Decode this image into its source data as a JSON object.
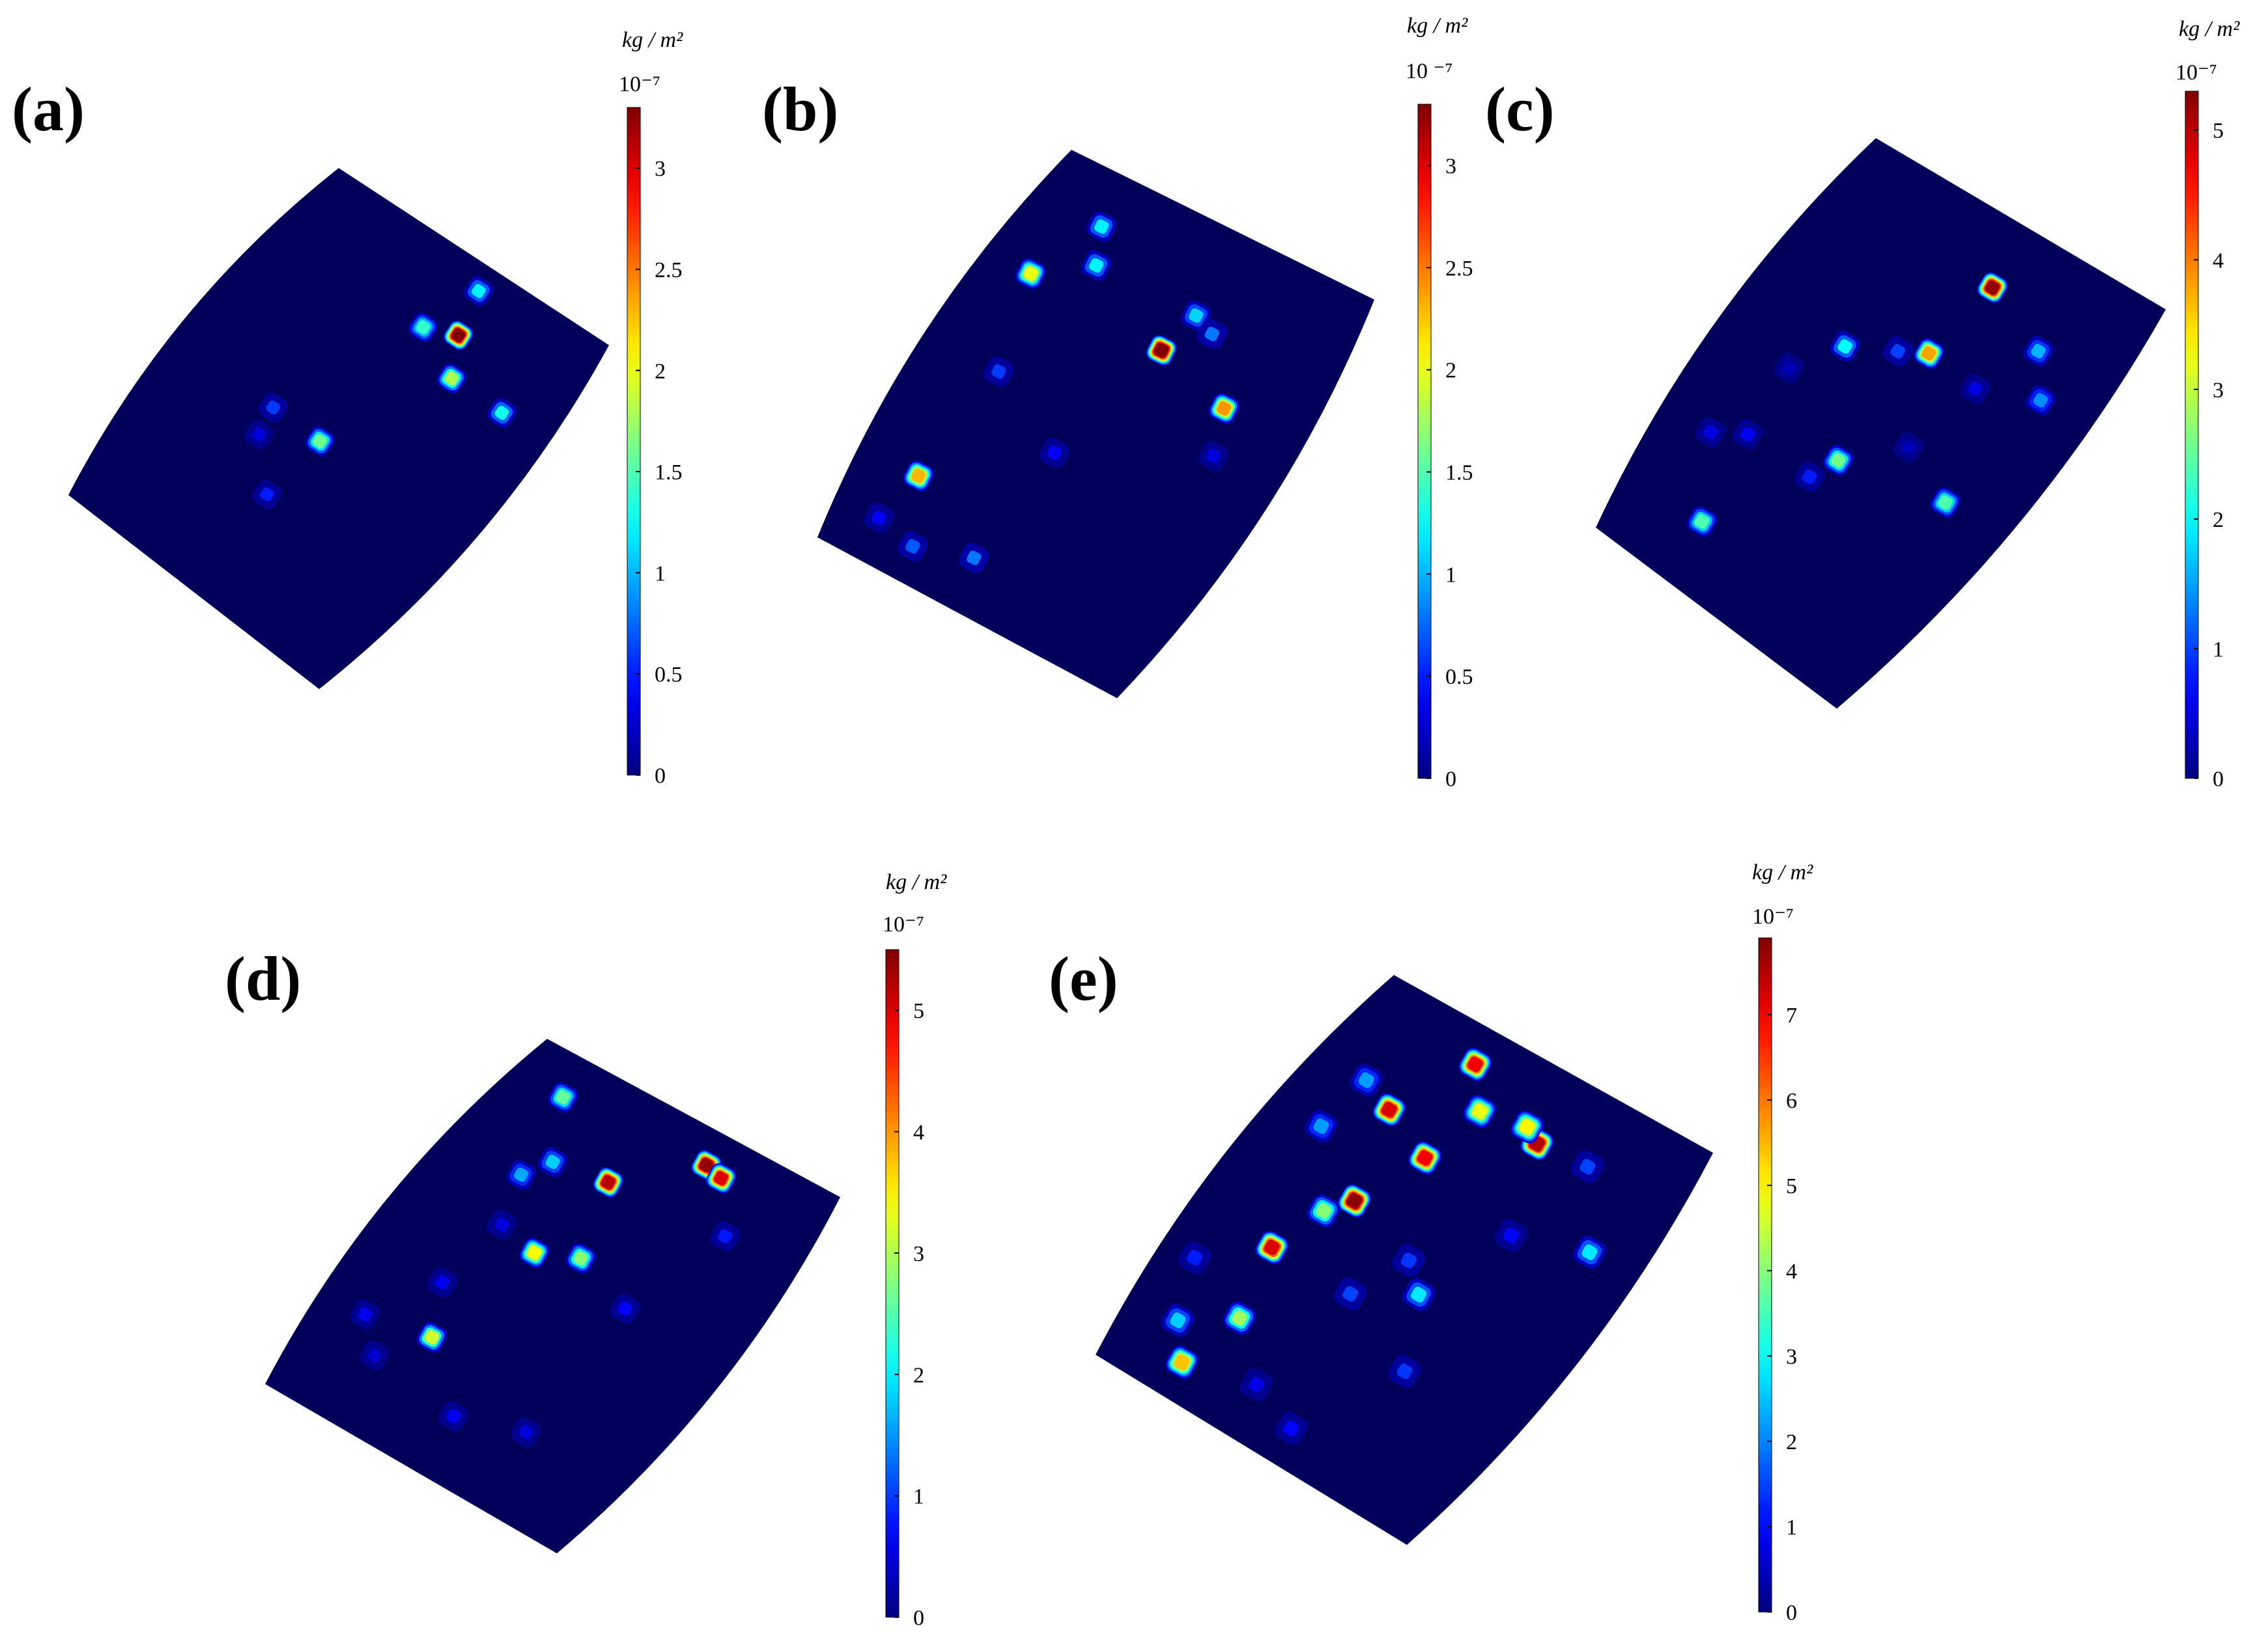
{
  "figure": {
    "colorbar_title": "kg / m²",
    "colorbar_exponent": "10⁻⁷",
    "colormap": "jet",
    "background_color": "#00005a"
  },
  "chart_data": [
    {
      "type": "heatmap",
      "label": "(a)",
      "colorbar": {
        "min": 0,
        "max": 3.3,
        "ticks": [
          0,
          0.5,
          1,
          1.5,
          2,
          2.5,
          3
        ]
      },
      "spots": [
        {
          "u": 0.62,
          "v": 0.17,
          "value": 3.3
        },
        {
          "u": 0.58,
          "v": 0.06,
          "value": 1.2
        },
        {
          "u": 0.52,
          "v": 0.2,
          "value": 1.4
        },
        {
          "u": 0.69,
          "v": 0.26,
          "value": 1.8
        },
        {
          "u": 0.88,
          "v": 0.26,
          "value": 1.3
        },
        {
          "u": 0.5,
          "v": 0.55,
          "value": 1.6
        },
        {
          "u": 0.32,
          "v": 0.55,
          "value": 0.6
        },
        {
          "u": 0.48,
          "v": 0.72,
          "value": 0.5
        },
        {
          "u": 0.34,
          "v": 0.62,
          "value": 0.3
        }
      ]
    },
    {
      "type": "heatmap",
      "label": "(b)",
      "colorbar": {
        "min": 0,
        "max": 3.3,
        "ticks": [
          0,
          0.5,
          1,
          1.5,
          2,
          2.5,
          3
        ],
        "exponent_text": "10 ⁻⁷"
      },
      "spots": [
        {
          "u": 0.2,
          "v": 0.12,
          "value": 1.2
        },
        {
          "u": 0.25,
          "v": 0.2,
          "value": 1.2
        },
        {
          "u": 0.1,
          "v": 0.28,
          "value": 2.0
        },
        {
          "u": 0.55,
          "v": 0.3,
          "value": 3.4
        },
        {
          "u": 0.58,
          "v": 0.2,
          "value": 1.1
        },
        {
          "u": 0.65,
          "v": 0.22,
          "value": 0.8
        },
        {
          "u": 0.8,
          "v": 0.35,
          "value": 2.4
        },
        {
          "u": 0.18,
          "v": 0.5,
          "value": 0.6
        },
        {
          "u": 0.45,
          "v": 0.6,
          "value": 0.4
        },
        {
          "u": 0.85,
          "v": 0.45,
          "value": 0.3
        },
        {
          "u": 0.15,
          "v": 0.78,
          "value": 2.3
        },
        {
          "u": 0.12,
          "v": 0.9,
          "value": 0.4
        },
        {
          "u": 0.25,
          "v": 0.92,
          "value": 0.7
        },
        {
          "u": 0.42,
          "v": 0.88,
          "value": 0.8
        }
      ]
    },
    {
      "type": "heatmap",
      "label": "(c)",
      "colorbar": {
        "min": 0,
        "max": 5.3,
        "ticks": [
          0,
          1,
          2,
          3,
          4,
          5
        ]
      },
      "spots": [
        {
          "u": 0.55,
          "v": 0.14,
          "value": 5.2
        },
        {
          "u": 0.78,
          "v": 0.2,
          "value": 1.6
        },
        {
          "u": 0.88,
          "v": 0.28,
          "value": 1.4
        },
        {
          "u": 0.52,
          "v": 0.32,
          "value": 3.8
        },
        {
          "u": 0.44,
          "v": 0.35,
          "value": 1.0
        },
        {
          "u": 0.3,
          "v": 0.4,
          "value": 2.0
        },
        {
          "u": 0.7,
          "v": 0.33,
          "value": 0.5
        },
        {
          "u": 0.85,
          "v": 0.55,
          "value": 2.4
        },
        {
          "u": 0.5,
          "v": 0.6,
          "value": 2.6
        },
        {
          "u": 0.46,
          "v": 0.66,
          "value": 0.8
        },
        {
          "u": 0.22,
          "v": 0.66,
          "value": 0.6
        },
        {
          "u": 0.12,
          "v": 0.7,
          "value": 0.5
        },
        {
          "u": 0.27,
          "v": 0.86,
          "value": 2.4
        },
        {
          "u": 0.2,
          "v": 0.5,
          "value": 0.3
        },
        {
          "u": 0.65,
          "v": 0.5,
          "value": 0.3
        }
      ]
    },
    {
      "type": "heatmap",
      "label": "(d)",
      "colorbar": {
        "min": 0,
        "max": 5.5,
        "ticks": [
          0,
          1,
          2,
          3,
          4,
          5
        ]
      },
      "spots": [
        {
          "u": 0.15,
          "v": 0.1,
          "value": 2.6
        },
        {
          "u": 0.62,
          "v": 0.08,
          "value": 5.4
        },
        {
          "u": 0.68,
          "v": 0.09,
          "value": 5.0
        },
        {
          "u": 0.42,
          "v": 0.22,
          "value": 5.2
        },
        {
          "u": 0.25,
          "v": 0.24,
          "value": 1.8
        },
        {
          "u": 0.2,
          "v": 0.3,
          "value": 1.6
        },
        {
          "u": 0.8,
          "v": 0.2,
          "value": 0.8
        },
        {
          "u": 0.5,
          "v": 0.4,
          "value": 2.8
        },
        {
          "u": 0.38,
          "v": 0.44,
          "value": 3.4
        },
        {
          "u": 0.25,
          "v": 0.42,
          "value": 0.5
        },
        {
          "u": 0.7,
          "v": 0.45,
          "value": 0.7
        },
        {
          "u": 0.22,
          "v": 0.6,
          "value": 0.6
        },
        {
          "u": 0.3,
          "v": 0.72,
          "value": 3.2
        },
        {
          "u": 0.1,
          "v": 0.75,
          "value": 0.6
        },
        {
          "u": 0.2,
          "v": 0.82,
          "value": 0.4
        },
        {
          "u": 0.5,
          "v": 0.85,
          "value": 0.6
        },
        {
          "u": 0.7,
          "v": 0.8,
          "value": 0.5
        }
      ]
    },
    {
      "type": "heatmap",
      "label": "(e)",
      "colorbar": {
        "min": 0,
        "max": 7.9,
        "ticks": [
          0,
          1,
          2,
          3,
          4,
          5,
          6,
          7
        ]
      },
      "spots": [
        {
          "u": 0.33,
          "v": 0.08,
          "value": 7.0
        },
        {
          "u": 0.42,
          "v": 0.16,
          "value": 4.8
        },
        {
          "u": 0.6,
          "v": 0.16,
          "value": 7.5
        },
        {
          "u": 0.55,
          "v": 0.14,
          "value": 5.0
        },
        {
          "u": 0.9,
          "v": 0.3,
          "value": 2.8
        },
        {
          "u": 0.22,
          "v": 0.25,
          "value": 7.2
        },
        {
          "u": 0.38,
          "v": 0.3,
          "value": 7.0
        },
        {
          "u": 0.12,
          "v": 0.22,
          "value": 2.2
        },
        {
          "u": 0.1,
          "v": 0.35,
          "value": 2.2
        },
        {
          "u": 0.3,
          "v": 0.45,
          "value": 7.8
        },
        {
          "u": 0.25,
          "v": 0.5,
          "value": 4.0
        },
        {
          "u": 0.6,
          "v": 0.55,
          "value": 2.8
        },
        {
          "u": 0.52,
          "v": 0.5,
          "value": 1.4
        },
        {
          "u": 0.45,
          "v": 0.62,
          "value": 1.5
        },
        {
          "u": 0.2,
          "v": 0.62,
          "value": 7.2
        },
        {
          "u": 0.7,
          "v": 0.7,
          "value": 1.4
        },
        {
          "u": 0.25,
          "v": 0.78,
          "value": 4.2
        },
        {
          "u": 0.05,
          "v": 0.72,
          "value": 1.2
        },
        {
          "u": 0.12,
          "v": 0.85,
          "value": 2.6
        },
        {
          "u": 0.2,
          "v": 0.92,
          "value": 5.4
        },
        {
          "u": 0.4,
          "v": 0.88,
          "value": 0.8
        },
        {
          "u": 0.55,
          "v": 0.92,
          "value": 1.0
        },
        {
          "u": 0.75,
          "v": 0.15,
          "value": 1.5
        },
        {
          "u": 0.7,
          "v": 0.35,
          "value": 1.0
        }
      ]
    }
  ]
}
